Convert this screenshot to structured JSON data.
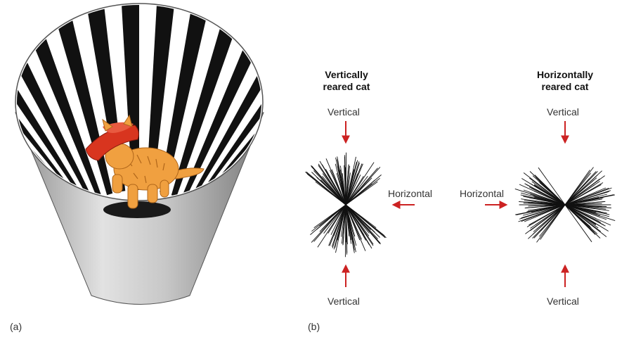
{
  "panel_a": {
    "label": "(a)"
  },
  "panel_b": {
    "label": "(b)",
    "left": {
      "title_line1": "Vertically",
      "title_line2": "reared cat",
      "top_label": "Vertical",
      "side_label": "Horizontal",
      "bottom_label": "Vertical"
    },
    "right": {
      "title_line1": "Horizontally",
      "title_line2": "reared cat",
      "top_label": "Vertical",
      "side_label": "Horizontal",
      "bottom_label": "Vertical"
    }
  },
  "colors": {
    "arrow": "#cc2222",
    "collar": "#d8351f",
    "cat": "#f0a040",
    "stripe": "#111111",
    "cylinder": "#b9b9b9"
  }
}
